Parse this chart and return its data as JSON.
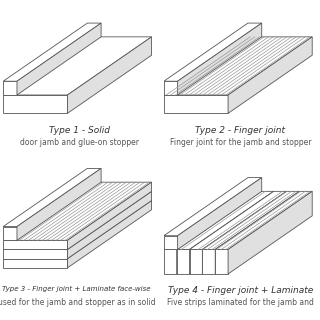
{
  "line_color": "#555555",
  "line_color_light": "#999999",
  "face_color": "#ffffff",
  "face_color_side": "#e0e0e0",
  "title_fontsize": 6.5,
  "label_fontsize": 5.5,
  "panels": [
    {
      "title": "Type 1 - Solid",
      "label": "door jamb and glue-on stopper",
      "type": 1
    },
    {
      "title": "Type 2 - Finger joint",
      "label": "Finger joint for the jamb and stopper",
      "type": 2
    },
    {
      "title": "Type 3 - Finger joint + Laminate face-wise",
      "label": "used for the jamb and stopper as in solid",
      "type": 3
    },
    {
      "title": "Type 4 - Finger joint + Laminate",
      "label": "Five strips laminated for the jamb and",
      "type": 4
    }
  ]
}
